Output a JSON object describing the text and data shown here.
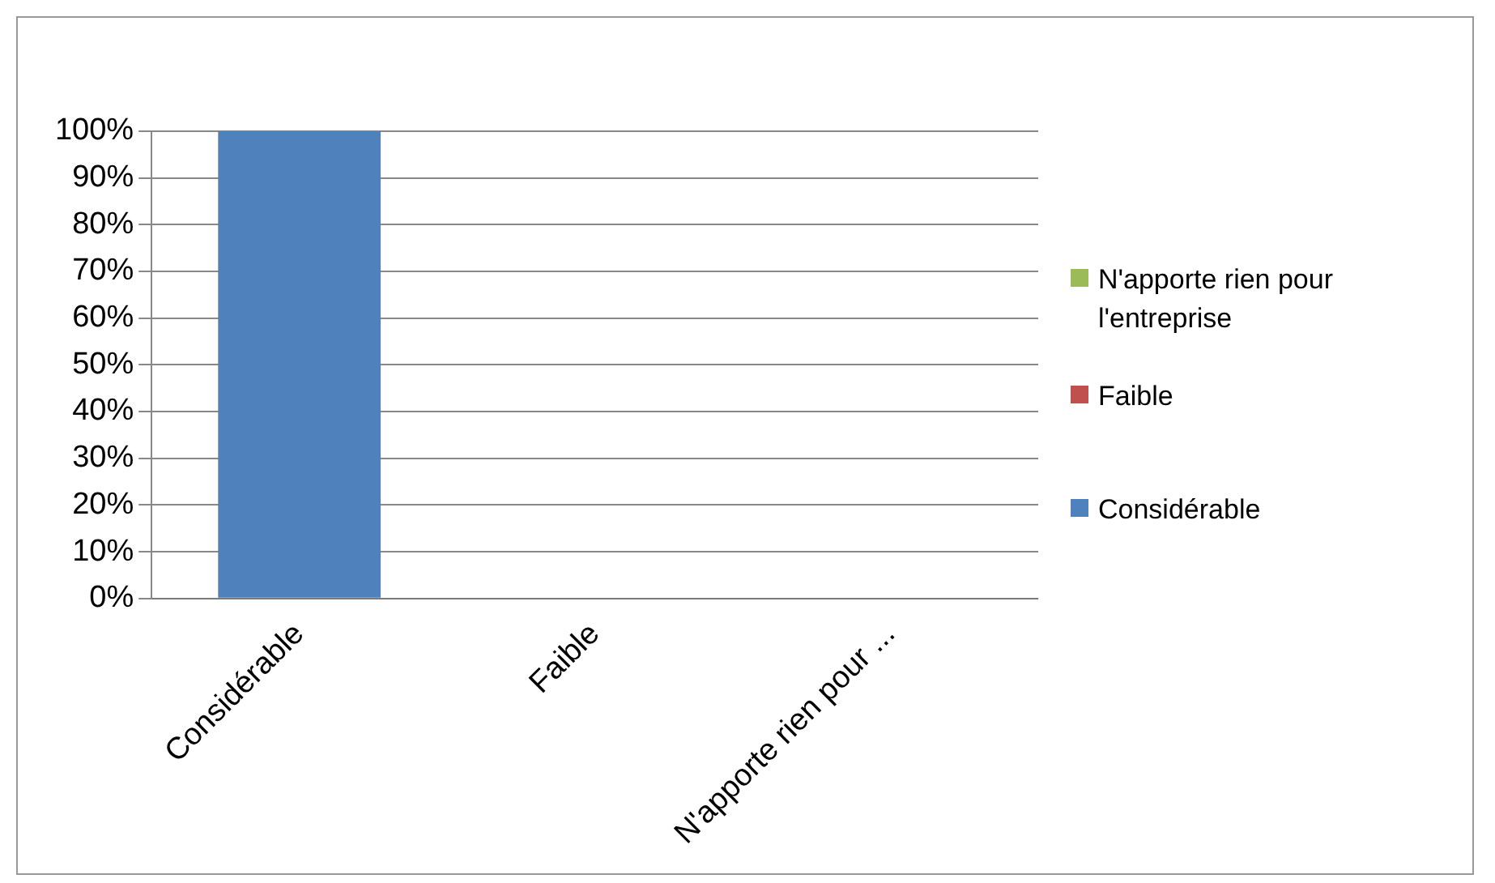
{
  "chart_data": {
    "type": "bar",
    "categories": [
      "Considérable",
      "Faible",
      "N'apporte rien pour ..."
    ],
    "series": [
      {
        "name": "Considérable",
        "color": "#4f81bd",
        "values": [
          100,
          null,
          null
        ]
      },
      {
        "name": "Faible",
        "color": "#c0504d",
        "values": [
          null,
          0,
          null
        ]
      },
      {
        "name": "N'apporte rien pour l'entreprise",
        "color": "#9bbb59",
        "values": [
          null,
          null,
          0
        ]
      }
    ],
    "ylim": [
      0,
      100
    ],
    "yticks": [
      {
        "value": 0,
        "label": "0%"
      },
      {
        "value": 10,
        "label": "10%"
      },
      {
        "value": 20,
        "label": "20%"
      },
      {
        "value": 30,
        "label": "30%"
      },
      {
        "value": 40,
        "label": "40%"
      },
      {
        "value": 50,
        "label": "50%"
      },
      {
        "value": 60,
        "label": "60%"
      },
      {
        "value": 70,
        "label": "70%"
      },
      {
        "value": 80,
        "label": "80%"
      },
      {
        "value": 90,
        "label": "90%"
      },
      {
        "value": 100,
        "label": "100%"
      }
    ],
    "grid": "y",
    "legend": "right"
  }
}
